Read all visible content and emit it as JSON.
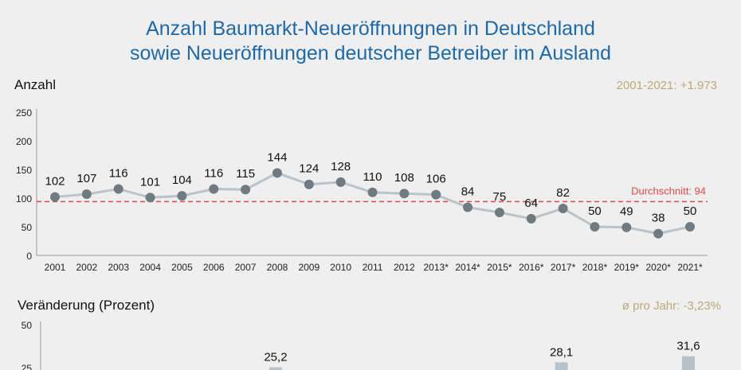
{
  "title_line1": "Anzahl Baumarkt-Neueröffnungnen in Deutschland",
  "title_line2": "sowie Neueröffnungen deutscher Betreiber im Ausland",
  "colors": {
    "title": "#1b6aae",
    "line": "#b9c3ca",
    "marker": "#6e7b83",
    "average": "#e0464b",
    "accent": "#bfa872",
    "bar": "#b7c2ca"
  },
  "chart_data": [
    {
      "type": "line",
      "ylabel": "Anzahl",
      "summary": "2001-2021: +1.973",
      "ylim": [
        0,
        250
      ],
      "yticks": [
        0,
        50,
        100,
        150,
        200,
        250
      ],
      "categories": [
        "2001",
        "2002",
        "2003",
        "2004",
        "2005",
        "2006",
        "2007",
        "2008",
        "2009",
        "2010",
        "2011",
        "2012",
        "2013*",
        "2014*",
        "2015*",
        "2016*",
        "2017*",
        "2018*",
        "2019*",
        "2020*",
        "2021*"
      ],
      "values": [
        102,
        107,
        116,
        101,
        104,
        116,
        115,
        144,
        124,
        128,
        110,
        108,
        106,
        84,
        75,
        64,
        82,
        50,
        49,
        38,
        50
      ],
      "average": {
        "label": "Durchschnitt: 94",
        "value": 94
      },
      "grid": false
    },
    {
      "type": "bar",
      "ylabel": "Veränderung (Prozent)",
      "summary": "ø pro Jahr: -3,23%",
      "yticks": [
        50,
        25
      ],
      "bars": [
        {
          "category": "2008",
          "value": 25.2,
          "label": "25,2"
        },
        {
          "category": "2017*",
          "value": 28.1,
          "label": "28,1"
        },
        {
          "category": "2021*",
          "value": 31.6,
          "label": "31,6"
        }
      ]
    }
  ]
}
